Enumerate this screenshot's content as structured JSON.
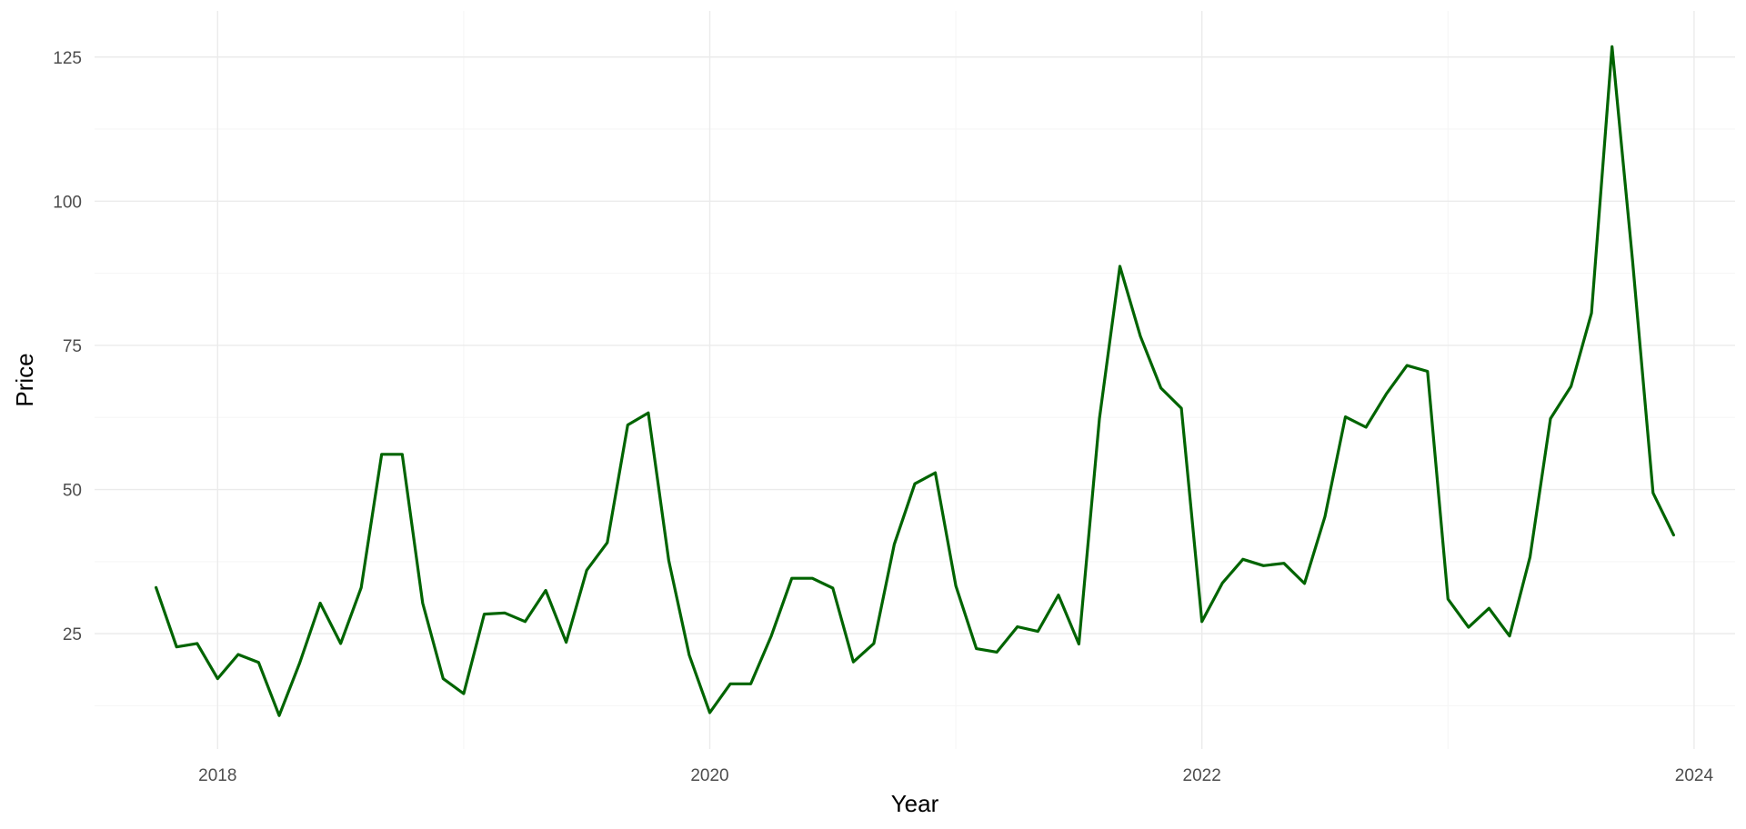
{
  "chart_data": {
    "type": "line",
    "xlabel": "Year",
    "ylabel": "Price",
    "x_axis_type": "date",
    "xlim": [
      "2017-07-01",
      "2024-03-01"
    ],
    "ylim": [
      5,
      133
    ],
    "x_ticks": [
      {
        "label": "2018",
        "value": "2018-01-01"
      },
      {
        "label": "2020",
        "value": "2020-01-01"
      },
      {
        "label": "2022",
        "value": "2022-01-01"
      },
      {
        "label": "2024",
        "value": "2024-01-01"
      }
    ],
    "x_minor_ticks": [
      "2019-01-01",
      "2021-01-01",
      "2023-01-01"
    ],
    "y_ticks": [
      25,
      50,
      75,
      100,
      125
    ],
    "y_minor_ticks": [
      12.5,
      37.5,
      62.5,
      87.5,
      112.5
    ],
    "grid": true,
    "legend": "none",
    "color": "#006400",
    "x": [
      "2017-10",
      "2017-11",
      "2017-12",
      "2018-01",
      "2018-02",
      "2018-03",
      "2018-04",
      "2018-05",
      "2018-06",
      "2018-07",
      "2018-08",
      "2018-09",
      "2018-10",
      "2018-11",
      "2018-12",
      "2019-01",
      "2019-02",
      "2019-03",
      "2019-04",
      "2019-05",
      "2019-06",
      "2019-07",
      "2019-08",
      "2019-09",
      "2019-10",
      "2019-11",
      "2019-12",
      "2020-01",
      "2020-02",
      "2020-03",
      "2020-04",
      "2020-05",
      "2020-06",
      "2020-07",
      "2020-08",
      "2020-09",
      "2020-10",
      "2020-11",
      "2020-12",
      "2021-01",
      "2021-02",
      "2021-03",
      "2021-04",
      "2021-05",
      "2021-06",
      "2021-07",
      "2021-08",
      "2021-09",
      "2021-10",
      "2021-11",
      "2021-12",
      "2022-01",
      "2022-02",
      "2022-03",
      "2022-04",
      "2022-05",
      "2022-06",
      "2022-07",
      "2022-08",
      "2022-09",
      "2022-10",
      "2022-11",
      "2022-12",
      "2023-01",
      "2023-02",
      "2023-03",
      "2023-04",
      "2023-05",
      "2023-06",
      "2023-07",
      "2023-08",
      "2023-09",
      "2023-10",
      "2023-11",
      "2023-12"
    ],
    "values": [
      33.0,
      22.7,
      23.3,
      17.2,
      21.4,
      20.0,
      10.8,
      19.9,
      30.3,
      23.3,
      33.0,
      56.1,
      56.1,
      30.3,
      17.2,
      14.6,
      28.4,
      28.6,
      27.1,
      32.5,
      23.5,
      36.0,
      40.8,
      61.2,
      63.3,
      37.7,
      21.3,
      11.3,
      16.3,
      16.3,
      24.6,
      34.6,
      34.6,
      32.9,
      20.1,
      23.3,
      40.5,
      51.0,
      52.9,
      33.3,
      22.4,
      21.8,
      26.2,
      25.4,
      31.7,
      23.2,
      62.3,
      88.7,
      76.6,
      67.6,
      64.1,
      27.1,
      33.8,
      37.9,
      36.8,
      37.2,
      33.7,
      45.3,
      62.6,
      60.8,
      66.6,
      71.5,
      70.5,
      31.0,
      26.1,
      29.4,
      24.6,
      38.3,
      62.3,
      67.9,
      80.6,
      126.8,
      89.6,
      49.4,
      42.1
    ]
  }
}
